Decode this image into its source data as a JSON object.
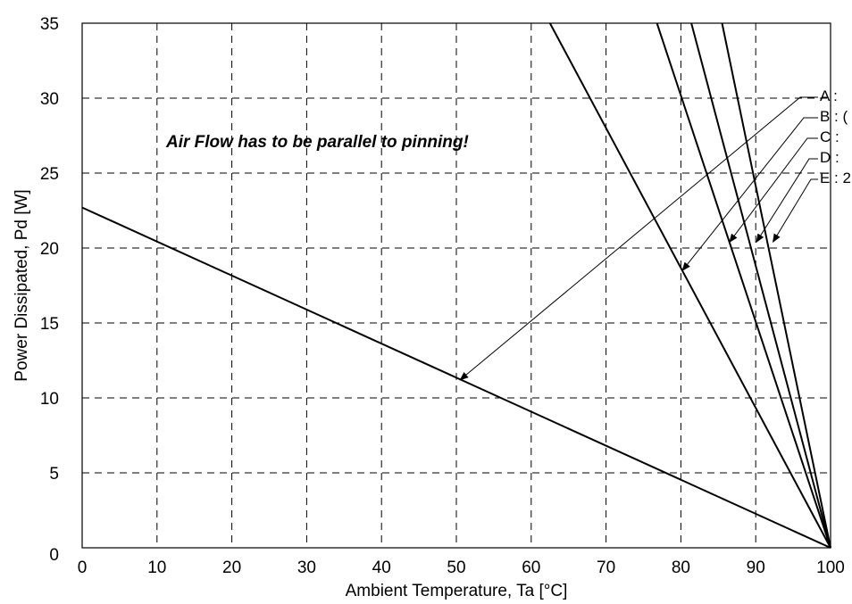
{
  "chart_data": {
    "type": "line",
    "title": "",
    "xlabel": "Ambient Temperature, Ta [°C]",
    "ylabel": "Power Dissipated, Pd [W]",
    "xlim": [
      0,
      100
    ],
    "ylim": [
      0,
      35
    ],
    "xticks": [
      0,
      10,
      20,
      30,
      40,
      50,
      60,
      70,
      80,
      90,
      100
    ],
    "yticks": [
      0,
      5,
      10,
      15,
      20,
      25,
      30,
      35
    ],
    "grid": true,
    "annotation": "Air Flow has to be parallel to pinning!",
    "series": [
      {
        "name": "A : ",
        "points": [
          [
            0,
            22.7
          ],
          [
            100,
            0
          ]
        ],
        "label_point": [
          50.5,
          11.2
        ]
      },
      {
        "name": "B : (",
        "points": [
          [
            62.5,
            35
          ],
          [
            100,
            0
          ]
        ],
        "label_point": [
          80.2,
          18.5
        ]
      },
      {
        "name": "C : ",
        "points": [
          [
            76.8,
            35
          ],
          [
            100,
            0
          ]
        ],
        "label_point": [
          86.5,
          20.4
        ]
      },
      {
        "name": "D : ",
        "points": [
          [
            81.4,
            35
          ],
          [
            100,
            0
          ]
        ],
        "label_point": [
          90.1,
          20.4
        ]
      },
      {
        "name": "E : 2",
        "points": [
          [
            85.5,
            35
          ],
          [
            100,
            0
          ]
        ],
        "label_point": [
          92.3,
          20.4
        ]
      }
    ]
  }
}
